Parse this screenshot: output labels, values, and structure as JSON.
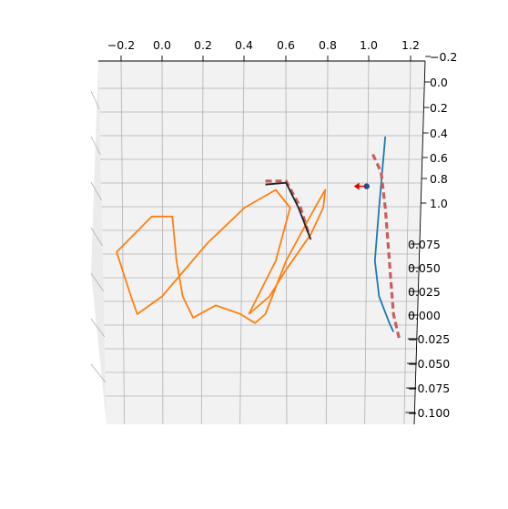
{
  "chart_data": {
    "type": "line",
    "projection": "3d",
    "title": "",
    "grid": true,
    "pane_color": "#f2f2f2",
    "grid_color": "#b0b0b0",
    "x_axis": {
      "label": "",
      "ticks": [
        "−0.2",
        "0.0",
        "0.2",
        "0.4",
        "0.6",
        "0.8",
        "1.0",
        "1.2"
      ],
      "ylim": [
        -0.3,
        1.25
      ]
    },
    "y_axis": {
      "label": "",
      "ticks": [
        "−0.2",
        "0.0",
        "0.2",
        "0.4",
        "0.6",
        "0.8",
        "1.0"
      ],
      "lim": [
        -0.2,
        1.0
      ]
    },
    "z_axis": {
      "label": "",
      "ticks": [
        "0.075",
        "0.050",
        "0.025",
        "0.000",
        "−0.025",
        "−0.050",
        "−0.075",
        "−0.100"
      ],
      "lim": [
        -0.1,
        0.075
      ]
    },
    "series": [
      {
        "role": "reference-trajectory",
        "color": "#ff7f0e",
        "style": "solid",
        "points": [
          [
            0.42,
            0.0
          ],
          [
            0.52,
            0.1
          ],
          [
            0.6,
            0.25
          ],
          [
            0.72,
            0.45
          ],
          [
            0.78,
            0.6
          ],
          [
            0.79,
            0.7
          ],
          [
            0.74,
            0.6
          ],
          [
            0.6,
            0.3
          ],
          [
            0.5,
            0.0
          ],
          [
            0.45,
            -0.05
          ],
          [
            0.38,
            0.0
          ],
          [
            0.26,
            0.05
          ],
          [
            0.15,
            -0.02
          ],
          [
            0.1,
            0.1
          ],
          [
            0.07,
            0.3
          ],
          [
            0.05,
            0.55
          ],
          [
            -0.05,
            0.55
          ],
          [
            -0.22,
            0.35
          ],
          [
            -0.15,
            0.1
          ],
          [
            -0.12,
            0.0
          ],
          [
            0.0,
            0.1
          ],
          [
            0.22,
            0.4
          ],
          [
            0.4,
            0.6
          ],
          [
            0.55,
            0.7
          ],
          [
            0.62,
            0.6
          ],
          [
            0.55,
            0.3
          ],
          [
            0.42,
            0.0
          ]
        ]
      },
      {
        "role": "trajectory-blue",
        "color": "#1f77b4",
        "style": "solid",
        "points": [
          [
            1.08,
            1.0
          ],
          [
            1.05,
            0.6
          ],
          [
            1.03,
            0.3
          ],
          [
            1.05,
            0.1
          ],
          [
            1.1,
            -0.05
          ],
          [
            1.12,
            -0.1
          ]
        ]
      },
      {
        "role": "trajectory-dashed-red",
        "color": "#cd5c5c",
        "style": "dashed",
        "points": [
          [
            1.02,
            0.9
          ],
          [
            1.06,
            0.8
          ],
          [
            1.08,
            0.6
          ],
          [
            1.1,
            0.3
          ],
          [
            1.12,
            0.0
          ],
          [
            1.15,
            -0.15
          ]
        ]
      },
      {
        "role": "arc-dashed-red",
        "color": "#cd5c5c",
        "style": "dashed",
        "points": [
          [
            0.5,
            0.75
          ],
          [
            0.6,
            0.75
          ],
          [
            0.67,
            0.6
          ],
          [
            0.71,
            0.45
          ]
        ]
      },
      {
        "role": "arc-black",
        "color": "#222222",
        "style": "solid",
        "points": [
          [
            0.5,
            0.73
          ],
          [
            0.6,
            0.74
          ],
          [
            0.66,
            0.6
          ],
          [
            0.72,
            0.42
          ]
        ]
      }
    ],
    "markers": [
      {
        "role": "current-position",
        "color": "#1f4e8c",
        "x": 0.99,
        "y": 0.72
      },
      {
        "role": "direction-arrow",
        "color": "#e00000",
        "x": 0.95,
        "y": 0.72
      }
    ]
  }
}
